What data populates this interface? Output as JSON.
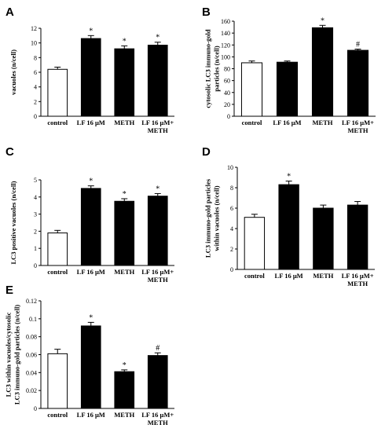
{
  "chart_data": [
    {
      "panel": "A",
      "type": "bar",
      "categories": [
        [
          "control"
        ],
        [
          "LF 16 μM"
        ],
        [
          "METH"
        ],
        [
          "LF 16 μM+",
          "METH"
        ]
      ],
      "values": [
        6.4,
        10.6,
        9.2,
        9.7
      ],
      "errors": [
        0.3,
        0.4,
        0.4,
        0.4
      ],
      "bar_colors": [
        "#ffffff",
        "#000000",
        "#000000",
        "#000000"
      ],
      "annotations": [
        "",
        "*",
        "*",
        "*"
      ],
      "ylabel": [
        "vacuoles (n/cell)"
      ],
      "ylim": [
        0,
        12
      ],
      "yticks": [
        0,
        2,
        4,
        6,
        8,
        10,
        12
      ],
      "ytick_labels": [
        "0",
        "2",
        "4",
        "6",
        "8",
        "10",
        "12"
      ],
      "grid": false
    },
    {
      "panel": "B",
      "type": "bar",
      "categories": [
        [
          "control"
        ],
        [
          "LF 16 μM"
        ],
        [
          "METH"
        ],
        [
          "LF 16 μM+",
          "METH"
        ]
      ],
      "values": [
        90,
        91,
        149,
        111
      ],
      "errors": [
        3,
        2,
        4,
        2
      ],
      "bar_colors": [
        "#ffffff",
        "#000000",
        "#000000",
        "#000000"
      ],
      "annotations": [
        "",
        "",
        "*",
        "#"
      ],
      "ylabel": [
        "cytosolic LC3 immuno-gold",
        "particles (n/cell)"
      ],
      "ylim": [
        0,
        160
      ],
      "yticks": [
        0,
        20,
        40,
        60,
        80,
        100,
        120,
        140,
        160
      ],
      "ytick_labels": [
        "0",
        "20",
        "40",
        "60",
        "80",
        "100",
        "120",
        "140",
        "160"
      ],
      "grid": false
    },
    {
      "panel": "C",
      "type": "bar",
      "categories": [
        [
          "control"
        ],
        [
          "LF 16 μM"
        ],
        [
          "METH"
        ],
        [
          "LF 16 μM+",
          "METH"
        ]
      ],
      "values": [
        1.9,
        4.5,
        3.75,
        4.05
      ],
      "errors": [
        0.15,
        0.15,
        0.15,
        0.15
      ],
      "bar_colors": [
        "#ffffff",
        "#000000",
        "#000000",
        "#000000"
      ],
      "annotations": [
        "",
        "*",
        "*",
        "*"
      ],
      "ylabel": [
        "LC3 positive vacuoles (n/cell)"
      ],
      "ylim": [
        0,
        5
      ],
      "yticks": [
        0,
        1,
        2,
        3,
        4,
        5
      ],
      "ytick_labels": [
        "0",
        "1",
        "2",
        "3",
        "4",
        "5"
      ],
      "grid": false
    },
    {
      "panel": "D",
      "type": "bar",
      "categories": [
        [
          "control"
        ],
        [
          "LF 16 μM"
        ],
        [
          "METH"
        ],
        [
          "LF 16 μM+",
          "METH"
        ]
      ],
      "values": [
        5.1,
        8.3,
        6.0,
        6.3
      ],
      "errors": [
        0.3,
        0.35,
        0.3,
        0.35
      ],
      "bar_colors": [
        "#ffffff",
        "#000000",
        "#000000",
        "#000000"
      ],
      "annotations": [
        "",
        "*",
        "",
        ""
      ],
      "ylabel": [
        "LC3 immuno-gold particles",
        "within vacuoles (n/cell)"
      ],
      "ylim": [
        0,
        10
      ],
      "yticks": [
        0,
        2,
        4,
        6,
        8,
        10
      ],
      "ytick_labels": [
        "0",
        "2",
        "4",
        "6",
        "8",
        "10"
      ],
      "grid": false
    },
    {
      "panel": "E",
      "type": "bar",
      "categories": [
        [
          "control"
        ],
        [
          "LF 16 μM"
        ],
        [
          "METH"
        ],
        [
          "LF 16 μM+",
          "METH"
        ]
      ],
      "values": [
        0.061,
        0.092,
        0.041,
        0.059
      ],
      "errors": [
        0.005,
        0.004,
        0.002,
        0.003
      ],
      "bar_colors": [
        "#ffffff",
        "#000000",
        "#000000",
        "#000000"
      ],
      "annotations": [
        "",
        "*",
        "*",
        "#"
      ],
      "ylabel": [
        "LC3  within vacuoles/cytosolic",
        "LC3 immuno-gold particles (n/cell)"
      ],
      "ylim": [
        0,
        0.12
      ],
      "yticks": [
        0,
        0.02,
        0.04,
        0.06,
        0.08,
        0.1,
        0.12
      ],
      "ytick_labels": [
        "0",
        "0.02",
        "0.04",
        "0.06",
        "0.08",
        "0.1",
        "0.12"
      ],
      "grid": false
    }
  ]
}
